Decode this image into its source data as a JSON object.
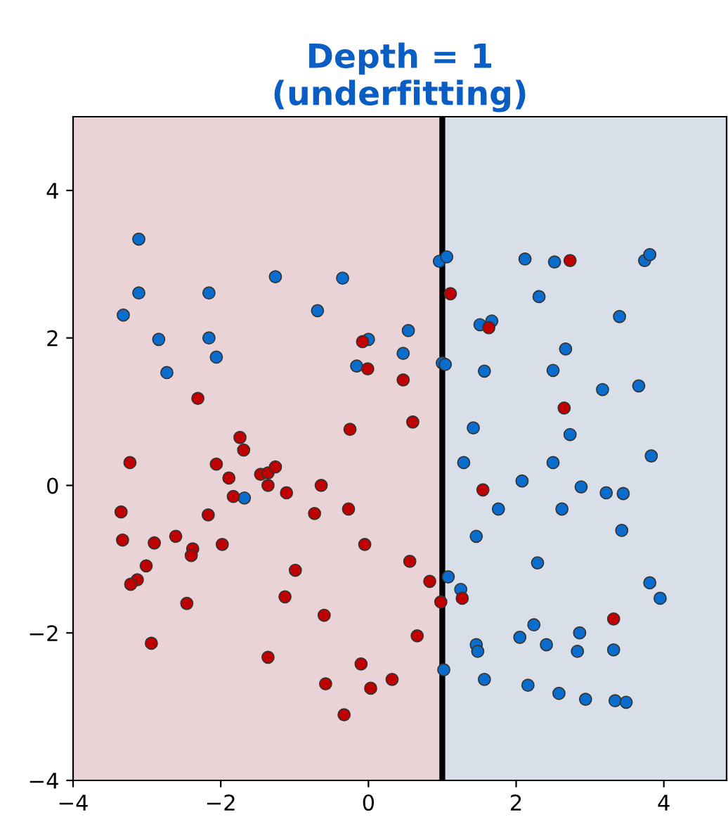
{
  "chart_data": {
    "type": "scatter",
    "title": "Depth = 1\n(underfitting)",
    "xlim": [
      -4,
      4.85
    ],
    "ylim": [
      -4,
      5
    ],
    "xticks": [
      -4,
      -2,
      0,
      2,
      4
    ],
    "yticks": [
      -4,
      -2,
      0,
      2,
      4
    ],
    "marker": "circle",
    "bands": [
      {
        "axis": "x",
        "from": -4,
        "to": 1,
        "color": "#e9d3d6"
      },
      {
        "axis": "x",
        "from": 1,
        "to": 4.85,
        "color": "#d8dfe9"
      }
    ],
    "ref_lines": [
      {
        "axis": "x",
        "value": 1,
        "color": "#000000"
      }
    ],
    "series": [
      {
        "color": "#0a6ccc",
        "x": [
          -3.11,
          -1.26,
          -0.35,
          -3.11,
          -2.16,
          -3.32,
          -0.69,
          -2.84,
          -2.16,
          -2.06,
          -2.73,
          0.0,
          0.54,
          0.47,
          -0.16,
          -1.68,
          0.96,
          1.06,
          1.0,
          2.12,
          2.52,
          3.74,
          3.81,
          2.31,
          1.51,
          1.67,
          3.4,
          2.67,
          1.04,
          1.57,
          2.5,
          3.17,
          3.66,
          1.42,
          2.73,
          1.29,
          2.5,
          3.83,
          2.08,
          2.88,
          3.22,
          3.45,
          1.76,
          2.62,
          1.46,
          3.43,
          2.29,
          3.81,
          3.95,
          1.08,
          1.25,
          2.24,
          2.05,
          2.86,
          1.46,
          1.48,
          2.41,
          2.83,
          3.32,
          1.02,
          1.57,
          2.16,
          2.58,
          2.94,
          3.34,
          3.49
        ],
        "values": [
          3.34,
          2.83,
          2.81,
          2.61,
          2.61,
          2.31,
          2.37,
          1.98,
          2.0,
          1.74,
          1.53,
          1.98,
          2.1,
          1.79,
          1.62,
          -0.17,
          3.04,
          3.1,
          1.66,
          3.07,
          3.03,
          3.05,
          3.13,
          2.56,
          2.18,
          2.23,
          2.29,
          1.85,
          1.64,
          1.55,
          1.56,
          1.3,
          1.35,
          0.78,
          0.69,
          0.31,
          0.31,
          0.4,
          0.06,
          -0.02,
          -0.1,
          -0.11,
          -0.32,
          -0.32,
          -0.69,
          -0.61,
          -1.05,
          -1.32,
          -1.53,
          -1.24,
          -1.41,
          -1.89,
          -2.06,
          -2.0,
          -2.16,
          -2.25,
          -2.16,
          -2.25,
          -2.23,
          -2.5,
          -2.63,
          -2.71,
          -2.82,
          -2.9,
          -2.92,
          -2.94
        ]
      },
      {
        "color": "#c00000",
        "x": [
          -3.23,
          -2.06,
          -1.89,
          -1.46,
          -1.36,
          -1.26,
          -1.36,
          -1.11,
          -0.64,
          -1.83,
          -3.35,
          -2.17,
          -0.73,
          -0.27,
          -3.33,
          -2.9,
          -2.61,
          -2.38,
          -2.4,
          -1.98,
          -0.05,
          -3.01,
          -3.13,
          -3.22,
          -0.99,
          0.56,
          0.83,
          0.98,
          -2.46,
          -1.13,
          -0.6,
          0.66,
          -2.94,
          -1.36,
          -0.1,
          -0.58,
          0.03,
          0.32,
          -0.33,
          -0.08,
          -0.01,
          0.47,
          -2.31,
          0.6,
          -0.25,
          -1.74,
          -1.69,
          2.73,
          1.11,
          1.63,
          2.65,
          1.55,
          1.27,
          3.32
        ],
        "values": [
          0.31,
          0.29,
          0.1,
          0.15,
          0.17,
          0.25,
          0.0,
          -0.1,
          0.0,
          -0.15,
          -0.36,
          -0.4,
          -0.38,
          -0.32,
          -0.74,
          -0.78,
          -0.69,
          -0.86,
          -0.95,
          -0.8,
          -0.8,
          -1.09,
          -1.28,
          -1.34,
          -1.15,
          -1.03,
          -1.3,
          -1.58,
          -1.6,
          -1.51,
          -1.76,
          -2.04,
          -2.14,
          -2.33,
          -2.42,
          -2.69,
          -2.75,
          -2.63,
          -3.11,
          1.95,
          1.58,
          1.43,
          1.18,
          0.86,
          0.76,
          0.65,
          0.48,
          3.05,
          2.6,
          2.14,
          1.05,
          -0.06,
          -1.53,
          -1.81
        ]
      }
    ]
  }
}
